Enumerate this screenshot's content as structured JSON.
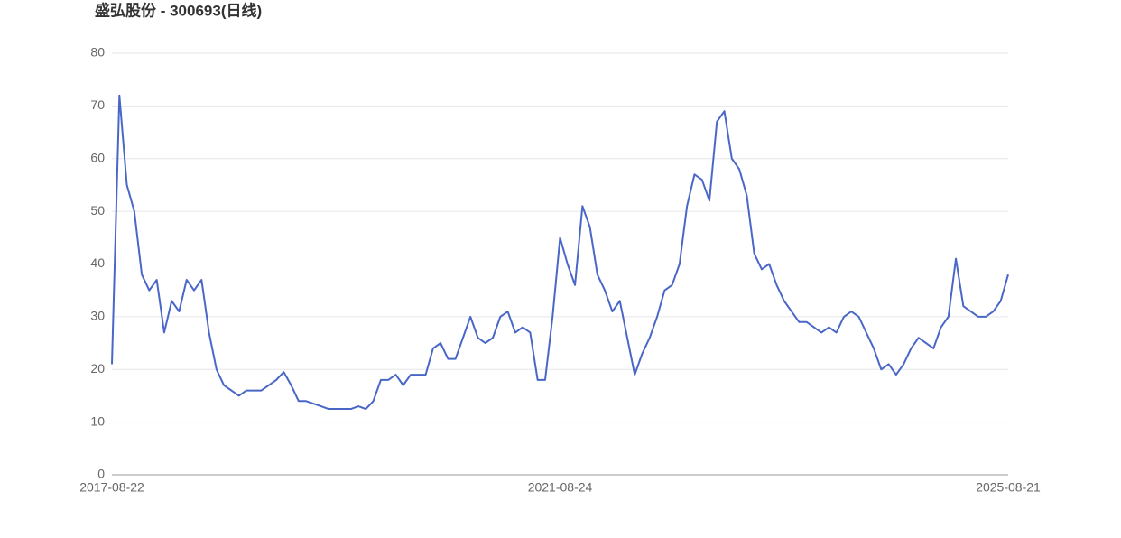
{
  "chart_data": {
    "type": "line",
    "title": "盛弘股份 - 300693(日线)",
    "categories": [
      "2017-08-22",
      null,
      null,
      null,
      null,
      null,
      null,
      null,
      null,
      null,
      null,
      null,
      null,
      null,
      null,
      null,
      null,
      null,
      null,
      null,
      null,
      null,
      null,
      null,
      null,
      null,
      null,
      null,
      null,
      null,
      null,
      null,
      null,
      null,
      null,
      null,
      null,
      null,
      null,
      null,
      null,
      null,
      null,
      null,
      null,
      null,
      null,
      null,
      null,
      null,
      null,
      null,
      null,
      null,
      null,
      null,
      null,
      null,
      null,
      null,
      "2021-08-24",
      null,
      null,
      null,
      null,
      null,
      null,
      null,
      null,
      null,
      null,
      null,
      null,
      null,
      null,
      null,
      null,
      null,
      null,
      null,
      null,
      null,
      null,
      null,
      null,
      null,
      null,
      null,
      null,
      null,
      null,
      null,
      null,
      null,
      null,
      null,
      null,
      null,
      null,
      null,
      null,
      null,
      null,
      null,
      null,
      null,
      null,
      null,
      null,
      null,
      null,
      null,
      null,
      null,
      null,
      null,
      null,
      null,
      null,
      null,
      "2025-08-21"
    ],
    "series": [
      {
        "color": "#4a67c8",
        "values": [
          21,
          72,
          55,
          50,
          38,
          35,
          37,
          27,
          33,
          31,
          37,
          35,
          37,
          27,
          20,
          17,
          16,
          15,
          16,
          16,
          16,
          17,
          18,
          19.5,
          17,
          14,
          14,
          13.5,
          13,
          12.5,
          12.5,
          12.5,
          12.5,
          13,
          12.5,
          14,
          18,
          18,
          19,
          17,
          19,
          19,
          19,
          24,
          25,
          22,
          22,
          26,
          30,
          26,
          25,
          26,
          30,
          31,
          27,
          28,
          27,
          18,
          18,
          30,
          45,
          40,
          36,
          51,
          47,
          38,
          35,
          31,
          33,
          26,
          19,
          23,
          26,
          30,
          35,
          36,
          40,
          51,
          57,
          56,
          52,
          67,
          69,
          60,
          58,
          53,
          42,
          39,
          40,
          36,
          33,
          31,
          29,
          29,
          28,
          27,
          28,
          27,
          30,
          31,
          30,
          27,
          24,
          20,
          21,
          19,
          21,
          24,
          26,
          25,
          24,
          28,
          30,
          41,
          32,
          31,
          30,
          30,
          31,
          33,
          38
        ]
      }
    ],
    "ylim": [
      0,
      80
    ],
    "yticks": [
      0,
      10,
      20,
      30,
      40,
      50,
      60,
      70,
      80
    ],
    "grid": true
  }
}
